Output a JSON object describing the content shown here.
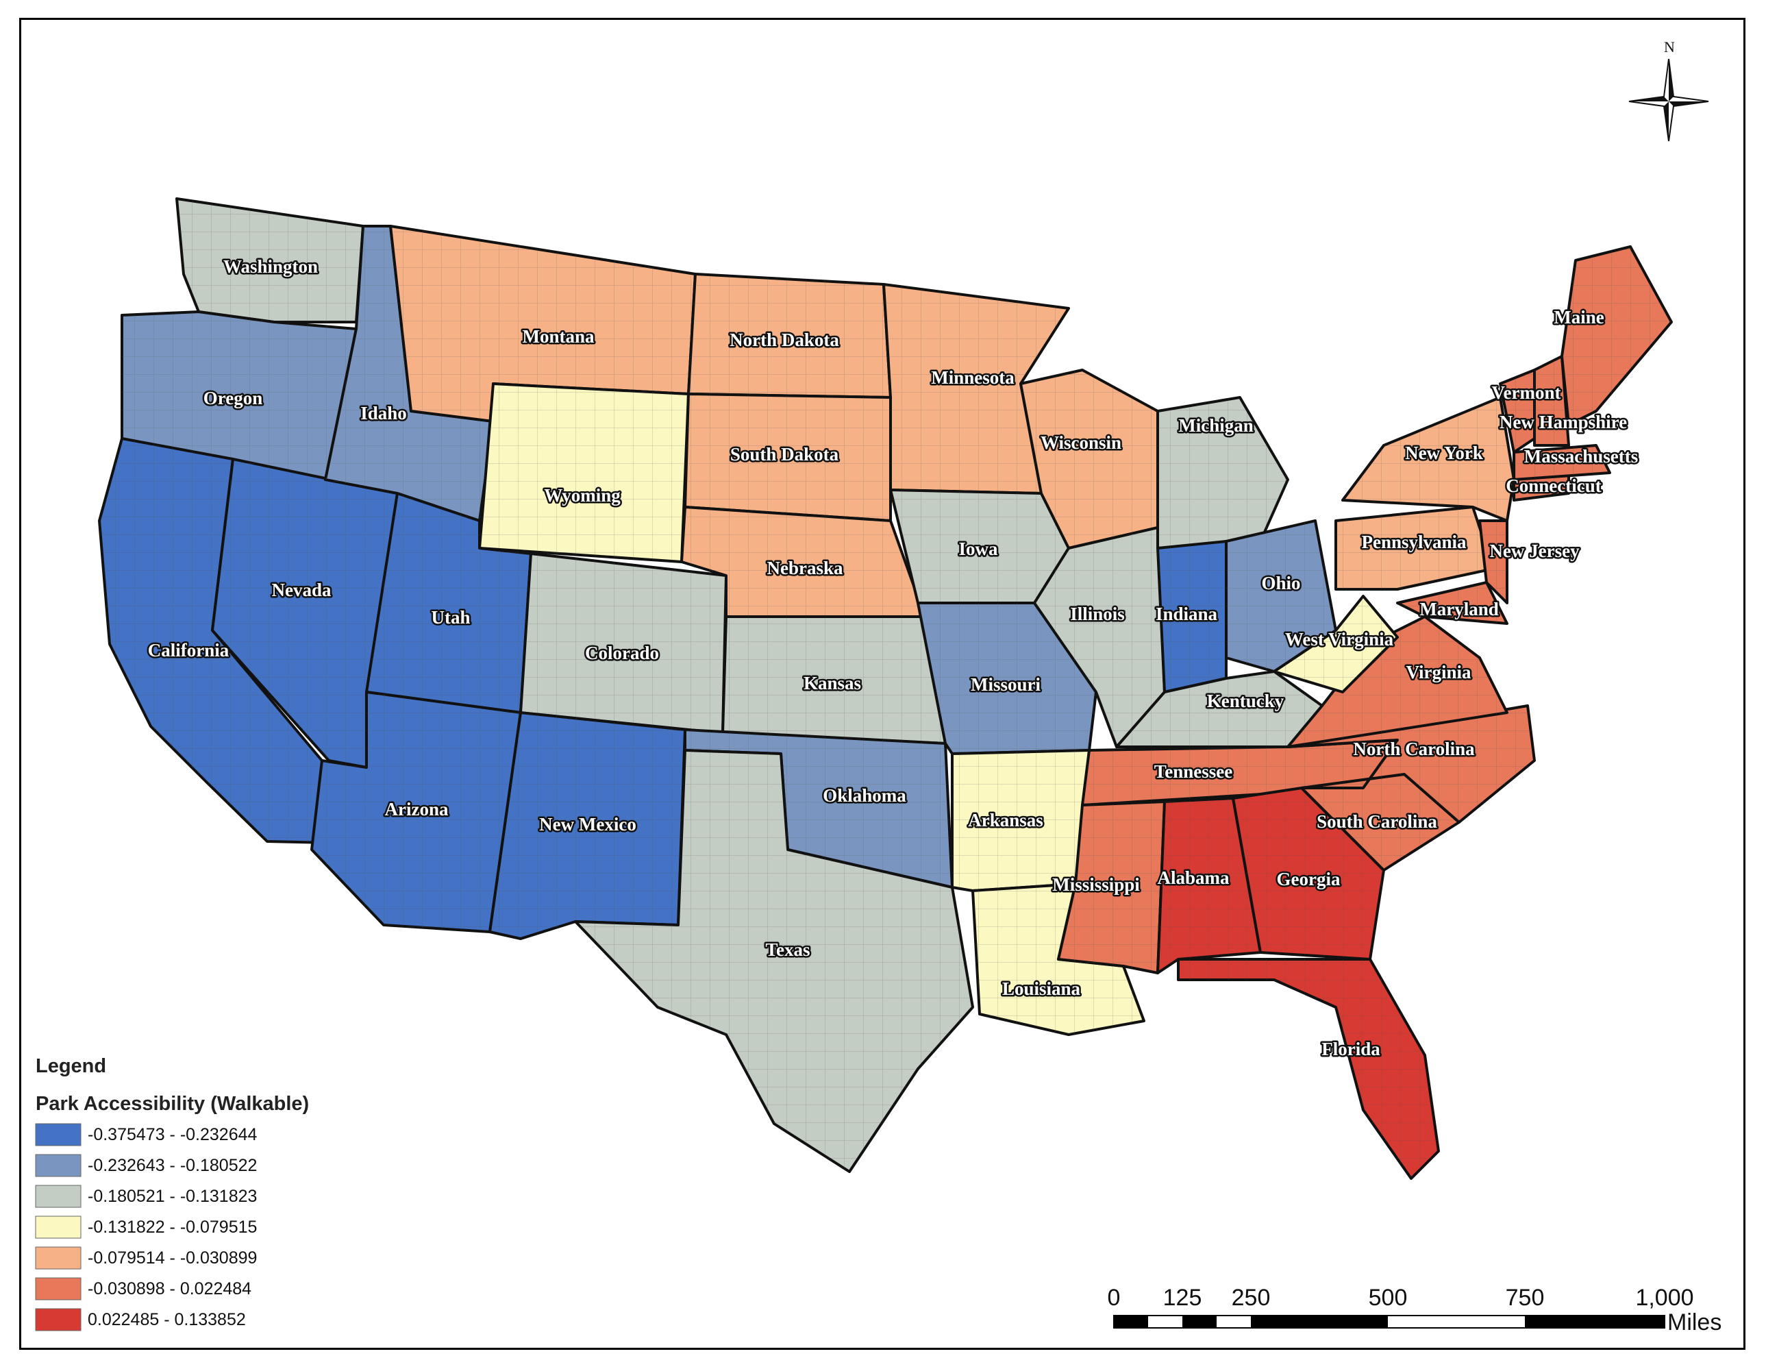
{
  "map": {
    "title": "",
    "north_label": "N",
    "legend": {
      "title": "Legend",
      "subtitle": "Park Accessibility (Walkable)",
      "classes": [
        {
          "label": "-0.375473 - -0.232644",
          "color": "#4472c4"
        },
        {
          "label": "-0.232643 - -0.180522",
          "color": "#7a96c0"
        },
        {
          "label": "-0.180521 - -0.131823",
          "color": "#c4cdc4"
        },
        {
          "label": "-0.131822 - -0.079515",
          "color": "#fbf8c2"
        },
        {
          "label": "-0.079514 - -0.030899",
          "color": "#f6b286"
        },
        {
          "label": "-0.030898 - 0.022484",
          "color": "#e8785a"
        },
        {
          "label": "0.022485 - 0.133852",
          "color": "#d63a32"
        }
      ]
    },
    "scale_bar": {
      "ticks": [
        "0",
        "125",
        "250",
        "500",
        "750",
        "1,000"
      ],
      "unit": "Miles"
    },
    "states": [
      {
        "name": "Washington",
        "class": 2
      },
      {
        "name": "Oregon",
        "class": 1
      },
      {
        "name": "California",
        "class": 0
      },
      {
        "name": "Nevada",
        "class": 0
      },
      {
        "name": "Idaho",
        "class": 1
      },
      {
        "name": "Montana",
        "class": 4
      },
      {
        "name": "Wyoming",
        "class": 3
      },
      {
        "name": "Utah",
        "class": 0
      },
      {
        "name": "Arizona",
        "class": 0
      },
      {
        "name": "Colorado",
        "class": 2
      },
      {
        "name": "New Mexico",
        "class": 0
      },
      {
        "name": "North Dakota",
        "class": 4
      },
      {
        "name": "South Dakota",
        "class": 4
      },
      {
        "name": "Nebraska",
        "class": 4
      },
      {
        "name": "Kansas",
        "class": 2
      },
      {
        "name": "Oklahoma",
        "class": 1
      },
      {
        "name": "Texas",
        "class": 2
      },
      {
        "name": "Minnesota",
        "class": 4
      },
      {
        "name": "Iowa",
        "class": 2
      },
      {
        "name": "Missouri",
        "class": 1
      },
      {
        "name": "Arkansas",
        "class": 3
      },
      {
        "name": "Louisiana",
        "class": 3
      },
      {
        "name": "Wisconsin",
        "class": 4
      },
      {
        "name": "Illinois",
        "class": 2
      },
      {
        "name": "Michigan",
        "class": 2
      },
      {
        "name": "Indiana",
        "class": 0
      },
      {
        "name": "Ohio",
        "class": 1
      },
      {
        "name": "Kentucky",
        "class": 2
      },
      {
        "name": "Tennessee",
        "class": 5
      },
      {
        "name": "Mississippi",
        "class": 5
      },
      {
        "name": "Alabama",
        "class": 6
      },
      {
        "name": "Georgia",
        "class": 6
      },
      {
        "name": "Florida",
        "class": 6
      },
      {
        "name": "South Carolina",
        "class": 5
      },
      {
        "name": "North Carolina",
        "class": 5
      },
      {
        "name": "Virginia",
        "class": 5
      },
      {
        "name": "West Virginia",
        "class": 3
      },
      {
        "name": "Maryland",
        "class": 5
      },
      {
        "name": "Pennsylvania",
        "class": 4
      },
      {
        "name": "New Jersey",
        "class": 5
      },
      {
        "name": "New York",
        "class": 4
      },
      {
        "name": "Connecticut",
        "class": 5
      },
      {
        "name": "Massachusetts",
        "class": 5
      },
      {
        "name": "Vermont",
        "class": 5
      },
      {
        "name": "New Hampshire",
        "class": 5
      },
      {
        "name": "Maine",
        "class": 5
      }
    ]
  }
}
